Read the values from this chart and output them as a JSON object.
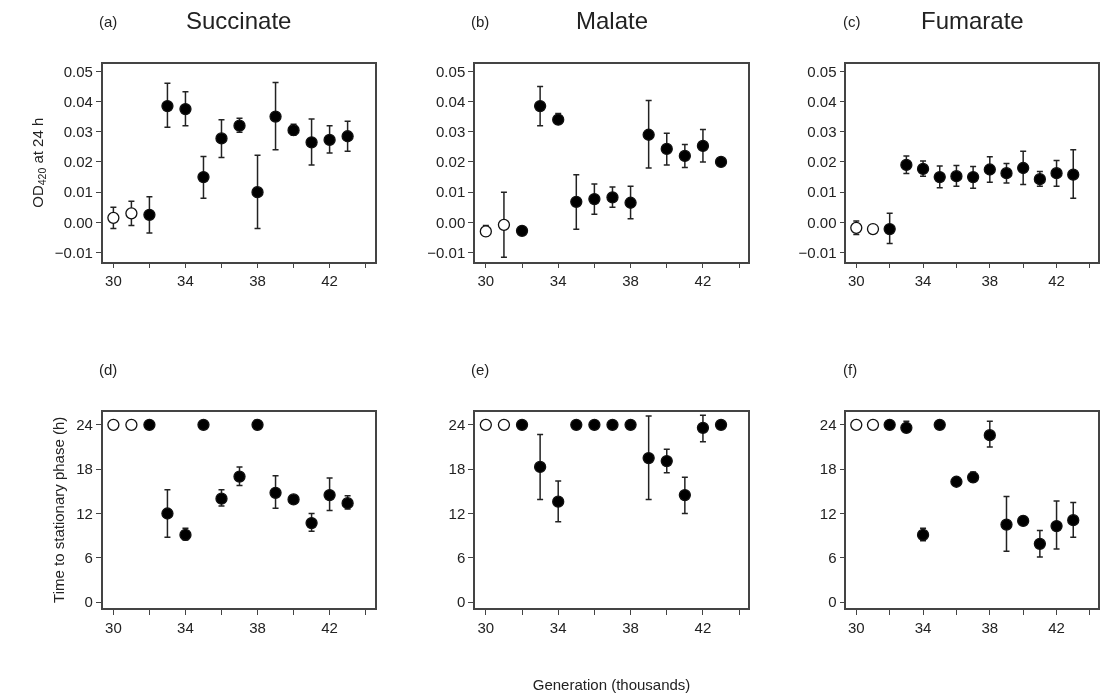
{
  "chart_data": [
    {
      "type": "scatter",
      "title": "Succinate",
      "annotations": [
        "(a)"
      ],
      "ylabel": "OD$_{420}$ at 24 h",
      "marker": "circle",
      "xlim": [
        29.4,
        44.5
      ],
      "xticks": [
        30,
        {
          "value": 32,
          "label": null
        },
        34,
        {
          "value": 36,
          "label": null
        },
        38,
        {
          "value": 40,
          "label": null
        },
        42,
        {
          "value": 44,
          "label": null
        }
      ],
      "ylim": [
        -0.013,
        0.0525
      ],
      "yticks": [
        {
          "value": -0.01,
          "label": "−0.01"
        },
        {
          "value": 0,
          "label": "0.00"
        },
        {
          "value": 0.01,
          "label": "0.01"
        },
        {
          "value": 0.02,
          "label": "0.02"
        },
        {
          "value": 0.03,
          "label": "0.03"
        },
        {
          "value": 0.04,
          "label": "0.04"
        },
        {
          "value": 0.05,
          "label": "0.05"
        }
      ],
      "series": [
        {
          "color": "#ffffff",
          "x": [
            30,
            31
          ],
          "values": [
            0.0015,
            0.003
          ],
          "errors": [
            [
              -0.002,
              0.005
            ],
            [
              -0.001,
              0.007
            ]
          ]
        },
        {
          "color": "#000000",
          "x": [
            32,
            33,
            34,
            35,
            36,
            37,
            38,
            39,
            40,
            41,
            42,
            43
          ],
          "values": [
            0.0025,
            0.0385,
            0.0375,
            0.015,
            0.0278,
            0.032,
            0.01,
            0.035,
            0.0305,
            0.0265,
            0.0273,
            0.0285
          ],
          "errors": [
            [
              -0.0035,
              0.0085
            ],
            [
              0.0315,
              0.046
            ],
            [
              0.032,
              0.0432
            ],
            [
              0.008,
              0.0218
            ],
            [
              0.0215,
              0.034
            ],
            [
              0.0298,
              0.0345
            ],
            [
              -0.002,
              0.0222
            ],
            [
              0.024,
              0.0463
            ],
            [
              0.0288,
              0.0325
            ],
            [
              0.019,
              0.0342
            ],
            [
              0.023,
              0.032
            ],
            [
              0.0235,
              0.0335
            ]
          ]
        }
      ]
    },
    {
      "type": "scatter",
      "title": "Malate",
      "annotations": [
        "(b)"
      ],
      "marker": "circle",
      "xlim": [
        29.4,
        44.5
      ],
      "xticks": [
        30,
        {
          "value": 32,
          "label": null
        },
        34,
        {
          "value": 36,
          "label": null
        },
        38,
        {
          "value": 40,
          "label": null
        },
        42,
        {
          "value": 44,
          "label": null
        }
      ],
      "ylim": [
        -0.013,
        0.0525
      ],
      "yticks": [
        {
          "value": -0.01,
          "label": "−0.01"
        },
        {
          "value": 0,
          "label": "0.00"
        },
        {
          "value": 0.01,
          "label": "0.01"
        },
        {
          "value": 0.02,
          "label": "0.02"
        },
        {
          "value": 0.03,
          "label": "0.03"
        },
        {
          "value": 0.04,
          "label": "0.04"
        },
        {
          "value": 0.05,
          "label": "0.05"
        }
      ],
      "series": [
        {
          "color": "#ffffff",
          "x": [
            30,
            31
          ],
          "values": [
            -0.003,
            -0.0008
          ],
          "errors": [
            [
              -0.0045,
              -0.001
            ],
            [
              -0.0115,
              0.01
            ]
          ]
        },
        {
          "color": "#000000",
          "x": [
            32,
            33,
            34,
            35,
            36,
            37,
            38,
            39,
            40,
            41,
            42,
            43
          ],
          "values": [
            -0.0028,
            0.0385,
            0.034,
            0.0068,
            0.0077,
            0.0083,
            0.0065,
            0.029,
            0.0243,
            0.022,
            0.0253,
            0.02
          ],
          "errors": [
            null,
            [
              0.032,
              0.045
            ],
            [
              0.0325,
              0.036
            ],
            [
              -0.0023,
              0.0158
            ],
            [
              0.0027,
              0.0127
            ],
            [
              0.005,
              0.0117
            ],
            [
              0.0012,
              0.012
            ],
            [
              0.018,
              0.0403
            ],
            [
              0.019,
              0.0295
            ],
            [
              0.0182,
              0.0258
            ],
            [
              0.02,
              0.0307
            ],
            null
          ]
        }
      ]
    },
    {
      "type": "scatter",
      "title": "Fumarate",
      "annotations": [
        "(c)"
      ],
      "marker": "circle",
      "xlim": [
        29.4,
        44.5
      ],
      "xticks": [
        30,
        {
          "value": 32,
          "label": null
        },
        34,
        {
          "value": 36,
          "label": null
        },
        38,
        {
          "value": 40,
          "label": null
        },
        42,
        {
          "value": 44,
          "label": null
        }
      ],
      "ylim": [
        -0.013,
        0.0525
      ],
      "yticks": [
        {
          "value": -0.01,
          "label": "−0.01"
        },
        {
          "value": 0,
          "label": "0.00"
        },
        {
          "value": 0.01,
          "label": "0.01"
        },
        {
          "value": 0.02,
          "label": "0.02"
        },
        {
          "value": 0.03,
          "label": "0.03"
        },
        {
          "value": 0.04,
          "label": "0.04"
        },
        {
          "value": 0.05,
          "label": "0.05"
        }
      ],
      "series": [
        {
          "color": "#ffffff",
          "x": [
            30,
            31
          ],
          "values": [
            -0.0018,
            -0.0022
          ],
          "errors": [
            [
              -0.004,
              0.0005
            ],
            [
              -0.0035,
              -0.0008
            ]
          ]
        },
        {
          "color": "#000000",
          "x": [
            32,
            33,
            34,
            35,
            36,
            37,
            38,
            39,
            40,
            41,
            42,
            43
          ],
          "values": [
            -0.0022,
            0.019,
            0.0177,
            0.015,
            0.0153,
            0.015,
            0.0175,
            0.0163,
            0.018,
            0.0143,
            0.0163,
            0.0158
          ],
          "errors": [
            [
              -0.007,
              0.003
            ],
            [
              0.0162,
              0.022
            ],
            [
              0.0153,
              0.0203
            ],
            [
              0.0115,
              0.0187
            ],
            [
              0.012,
              0.0188
            ],
            [
              0.0113,
              0.0185
            ],
            [
              0.0133,
              0.0217
            ],
            [
              0.013,
              0.0195
            ],
            [
              0.0125,
              0.0235
            ],
            [
              0.012,
              0.0168
            ],
            [
              0.012,
              0.0205
            ],
            [
              0.008,
              0.024
            ]
          ]
        }
      ]
    },
    {
      "type": "scatter",
      "annotations": [
        "(d)"
      ],
      "ylabel": "Time to stationary phase (h)",
      "marker": "circle",
      "xlim": [
        29.4,
        44.5
      ],
      "xticks": [
        30,
        {
          "value": 32,
          "label": null
        },
        34,
        {
          "value": 36,
          "label": null
        },
        38,
        {
          "value": 40,
          "label": null
        },
        42,
        {
          "value": 44,
          "label": null
        }
      ],
      "ylim": [
        -0.8,
        25.8
      ],
      "yticks": [
        0,
        6,
        12,
        18,
        24
      ],
      "series": [
        {
          "color": "#ffffff",
          "x": [
            30,
            31
          ],
          "values": [
            24,
            24
          ]
        },
        {
          "color": "#000000",
          "x": [
            32,
            33,
            34,
            35,
            36,
            37,
            38,
            39,
            40,
            41,
            42,
            43
          ],
          "values": [
            24,
            12,
            9.1,
            24,
            14,
            17,
            24,
            14.8,
            13.9,
            10.7,
            14.5,
            13.4
          ],
          "errors": [
            null,
            [
              8.8,
              15.2
            ],
            [
              8.4,
              10
            ],
            null,
            [
              13,
              15.2
            ],
            [
              15.8,
              18.3
            ],
            null,
            [
              12.7,
              17.1
            ],
            null,
            [
              9.6,
              12
            ],
            [
              12.4,
              16.8
            ],
            [
              12.6,
              14.4
            ]
          ]
        }
      ]
    },
    {
      "type": "scatter",
      "annotations": [
        "(e)"
      ],
      "xlabel": "Generation (thousands)",
      "marker": "circle",
      "xlim": [
        29.4,
        44.5
      ],
      "xticks": [
        30,
        {
          "value": 32,
          "label": null
        },
        34,
        {
          "value": 36,
          "label": null
        },
        38,
        {
          "value": 40,
          "label": null
        },
        42,
        {
          "value": 44,
          "label": null
        }
      ],
      "ylim": [
        -0.8,
        25.8
      ],
      "yticks": [
        0,
        6,
        12,
        18,
        24
      ],
      "series": [
        {
          "color": "#ffffff",
          "x": [
            30,
            31
          ],
          "values": [
            24,
            24
          ]
        },
        {
          "color": "#000000",
          "x": [
            32,
            33,
            34,
            35,
            36,
            37,
            38,
            39,
            40,
            41,
            42,
            43
          ],
          "values": [
            24,
            18.3,
            13.6,
            24,
            24,
            24,
            24,
            19.5,
            19.1,
            14.5,
            23.6,
            24
          ],
          "errors": [
            null,
            [
              13.9,
              22.7
            ],
            [
              10.9,
              16.4
            ],
            null,
            null,
            null,
            null,
            [
              13.9,
              25.2
            ],
            [
              17.5,
              20.7
            ],
            [
              12,
              16.9
            ],
            [
              21.7,
              25.3
            ],
            null
          ]
        }
      ]
    },
    {
      "type": "scatter",
      "annotations": [
        "(f)"
      ],
      "marker": "circle",
      "xlim": [
        29.4,
        44.5
      ],
      "xticks": [
        30,
        {
          "value": 32,
          "label": null
        },
        34,
        {
          "value": 36,
          "label": null
        },
        38,
        {
          "value": 40,
          "label": null
        },
        42,
        {
          "value": 44,
          "label": null
        }
      ],
      "ylim": [
        -0.8,
        25.8
      ],
      "yticks": [
        0,
        6,
        12,
        18,
        24
      ],
      "series": [
        {
          "color": "#ffffff",
          "x": [
            30,
            31
          ],
          "values": [
            24,
            24
          ]
        },
        {
          "color": "#000000",
          "x": [
            32,
            33,
            34,
            35,
            36,
            37,
            38,
            39,
            40,
            41,
            42,
            43
          ],
          "values": [
            24,
            23.6,
            9.1,
            24,
            16.3,
            16.9,
            22.6,
            10.5,
            11,
            7.9,
            10.3,
            11.1
          ],
          "errors": [
            null,
            [
              23,
              24.5
            ],
            [
              8.3,
              10
            ],
            null,
            null,
            [
              16.3,
              17.6
            ],
            [
              21,
              24.5
            ],
            [
              6.9,
              14.3
            ],
            [
              10.4,
              11.6
            ],
            [
              6.1,
              9.7
            ],
            [
              7.2,
              13.7
            ],
            [
              8.8,
              13.5
            ]
          ]
        }
      ]
    }
  ]
}
